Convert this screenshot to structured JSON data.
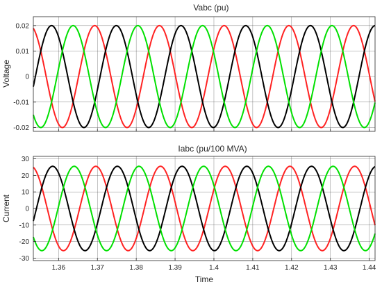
{
  "colors": {
    "phase_a": "#ff2222",
    "phase_b": "#000000",
    "phase_c": "#00e000",
    "grid": "#262626",
    "axis": "#262626"
  },
  "chart_data": [
    {
      "type": "line",
      "title": "Vabc  (pu)",
      "xlabel": "",
      "ylabel": "Voltage",
      "xlim": [
        1.3535,
        1.4415
      ],
      "ylim": [
        -0.0215,
        0.0235
      ],
      "xticks": [
        1.36,
        1.37,
        1.38,
        1.39,
        1.4,
        1.41,
        1.42,
        1.43,
        1.44
      ],
      "yticks": [
        0.02,
        0.01,
        0,
        -0.01,
        -0.02
      ],
      "ytick_labels": [
        "0.02",
        "0.01",
        "0",
        "-0.01",
        "-0.02"
      ],
      "grid": true,
      "frequency_hz": 60,
      "series": [
        {
          "color": "#ff2222",
          "amplitude": 0.02,
          "phase_deg": 33
        },
        {
          "color": "#000000",
          "amplitude": 0.02,
          "phase_deg": -87
        },
        {
          "color": "#00e000",
          "amplitude": 0.02,
          "phase_deg": 153
        }
      ]
    },
    {
      "type": "line",
      "title": "Iabc (pu/100 MVA)",
      "xlabel": "Time",
      "ylabel": "Current",
      "xlim": [
        1.3535,
        1.4415
      ],
      "ylim": [
        -31.5,
        31.5
      ],
      "xticks": [
        1.36,
        1.37,
        1.38,
        1.39,
        1.4,
        1.41,
        1.42,
        1.43,
        1.44
      ],
      "xtick_labels": [
        "1.36",
        "1.37",
        "1.38",
        "1.39",
        "1.4",
        "1.41",
        "1.42",
        "1.43",
        "1.44"
      ],
      "yticks": [
        30,
        20,
        10,
        0,
        -10,
        -20,
        -30
      ],
      "ytick_labels": [
        "30",
        "20",
        "10",
        "0",
        "-10",
        "-20",
        "-30"
      ],
      "grid": true,
      "frequency_hz": 60,
      "series": [
        {
          "color": "#ff2222",
          "amplitude": 25.5,
          "phase_deg": 27
        },
        {
          "color": "#000000",
          "amplitude": 25.5,
          "phase_deg": -93
        },
        {
          "color": "#00e000",
          "amplitude": 25.5,
          "phase_deg": 147
        }
      ]
    }
  ]
}
